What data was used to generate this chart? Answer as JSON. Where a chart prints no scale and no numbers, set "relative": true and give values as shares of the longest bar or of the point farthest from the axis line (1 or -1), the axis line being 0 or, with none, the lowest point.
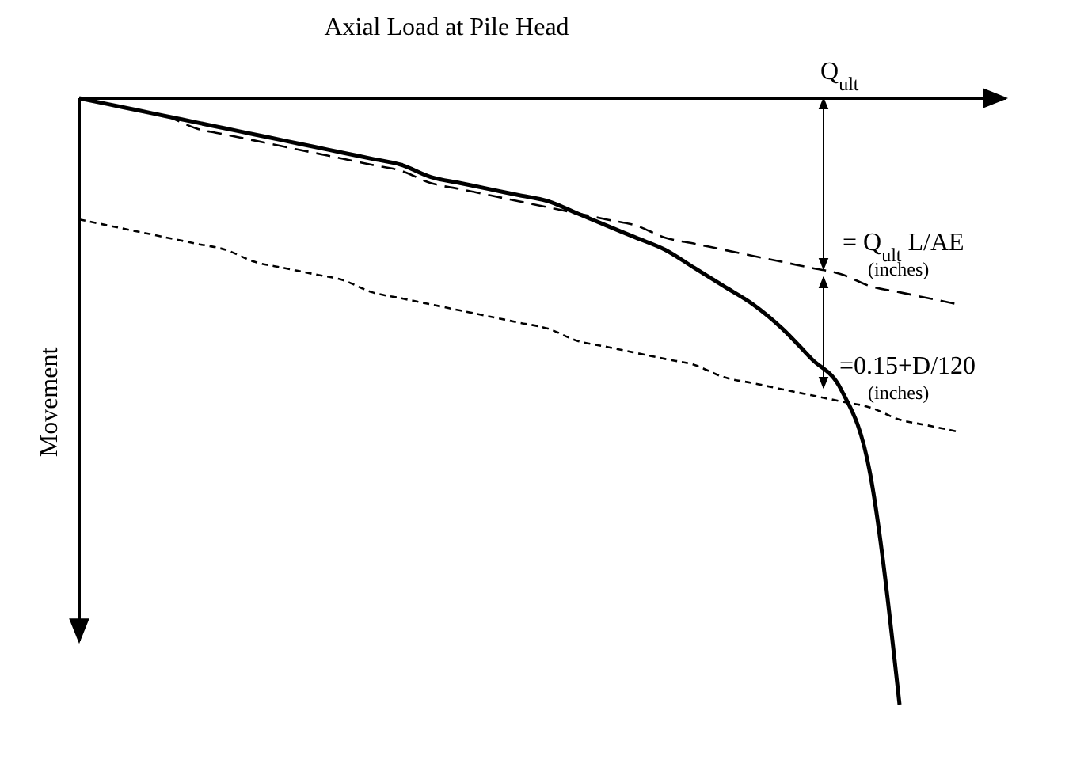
{
  "chart_data": {
    "type": "line",
    "relative": true,
    "title": "Axial Load at Pile Head",
    "ylabel": "Movement",
    "categories": [
      null,
      null,
      null,
      null,
      null,
      null,
      null,
      null,
      null,
      null,
      null,
      null,
      null,
      null,
      null,
      null,
      null,
      null,
      null,
      null,
      null,
      null,
      null,
      null,
      null,
      null,
      null,
      null,
      null,
      null,
      null
    ],
    "series": [
      {
        "color": "#000000",
        "line_style": "solid",
        "values": [
          0,
          -0.01,
          -0.02,
          -0.03,
          -0.04,
          -0.05,
          -0.06,
          -0.07,
          -0.08,
          -0.09,
          -0.1,
          -0.11,
          -0.13,
          -0.14,
          -0.15,
          -0.16,
          -0.17,
          -0.19,
          -0.21,
          -0.23,
          -0.25,
          -0.28,
          -0.31,
          -0.34,
          -0.38,
          -0.43,
          -0.48,
          -0.62,
          -1,
          null,
          null
        ]
      },
      {
        "color": "#000000",
        "line_style": "dashed",
        "values": [
          0,
          -0.01,
          -0.02,
          -0.03,
          -0.05,
          -0.06,
          -0.07,
          -0.08,
          -0.09,
          -0.1,
          -0.11,
          -0.12,
          -0.14,
          -0.15,
          -0.16,
          -0.17,
          -0.18,
          -0.19,
          -0.2,
          -0.21,
          -0.23,
          -0.24,
          -0.25,
          -0.26,
          -0.27,
          -0.28,
          -0.29,
          -0.31,
          -0.32,
          -0.33,
          -0.34
        ]
      },
      {
        "color": "#000000",
        "line_style": "dotted",
        "values": [
          -0.2,
          -0.21,
          -0.22,
          -0.23,
          -0.24,
          -0.25,
          -0.27,
          -0.28,
          -0.29,
          -0.3,
          -0.32,
          -0.33,
          -0.34,
          -0.35,
          -0.36,
          -0.37,
          -0.38,
          -0.4,
          -0.41,
          -0.42,
          -0.43,
          -0.44,
          -0.46,
          -0.47,
          -0.48,
          -0.49,
          -0.5,
          -0.51,
          -0.53,
          -0.54,
          -0.55
        ]
      }
    ],
    "annotations": [
      "Q$_{ult}$",
      "= Q$_{ult}$ L/AE",
      "(inches)",
      "=0.15+D/120",
      "(inches)"
    ]
  }
}
